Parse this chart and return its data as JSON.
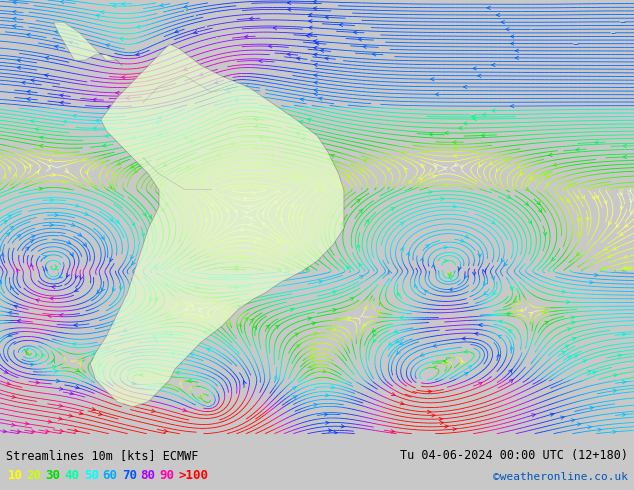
{
  "title_left": "Streamlines 10m [kts] ECMWF",
  "title_right": "Tu 04-06-2024 00:00 UTC (12+180)",
  "credit": "©weatheronline.co.uk",
  "legend_values": [
    "10",
    "20",
    "30",
    "40",
    "50",
    "60",
    "70",
    "80",
    "90",
    ">100"
  ],
  "legend_colors": [
    "#ffff00",
    "#ccff00",
    "#00dd00",
    "#00ffaa",
    "#00ffff",
    "#00aaff",
    "#0055ff",
    "#aa00ff",
    "#ff00aa",
    "#ff0000"
  ],
  "bg_color": "#f2f2f2",
  "fig_bg": "#c8c8c8",
  "continent_fill": "#e8ffcc",
  "seed": 12345,
  "figsize": [
    6.34,
    4.9
  ],
  "dpi": 100
}
